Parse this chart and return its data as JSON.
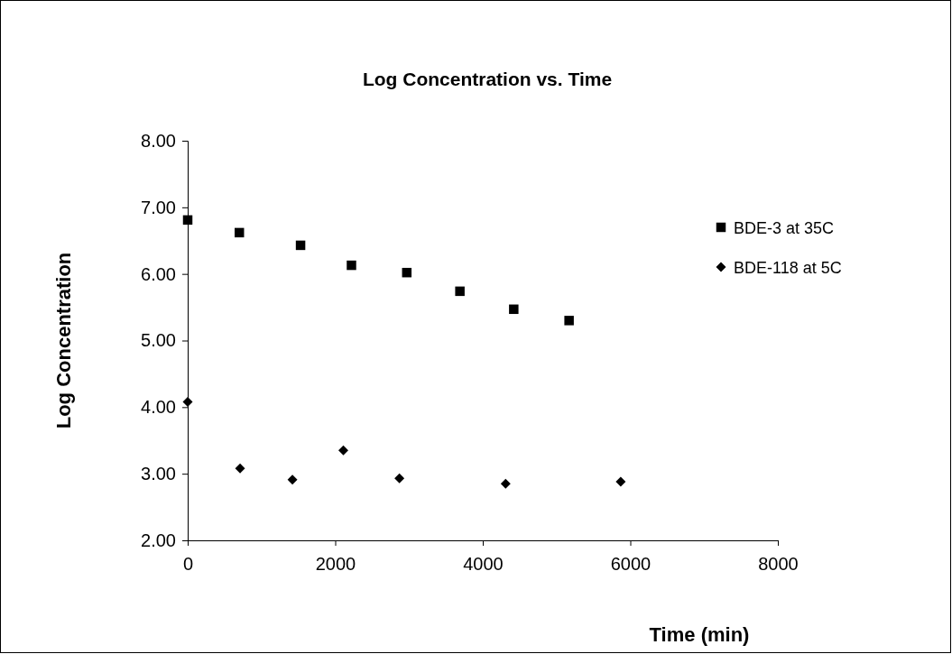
{
  "chart_data": {
    "type": "scatter",
    "title": "Log Concentration vs. Time",
    "xlabel": "Time (min)",
    "ylabel": "Log Concentration",
    "xlim": [
      0,
      8000
    ],
    "xticks": [
      0,
      2000,
      4000,
      6000,
      8000
    ],
    "ylim": [
      2,
      8
    ],
    "yticks": [
      {
        "value": 2,
        "label": "2.00"
      },
      {
        "value": 3,
        "label": "3.00"
      },
      {
        "value": 4,
        "label": "4.00"
      },
      {
        "value": 5,
        "label": "5.00"
      },
      {
        "value": 6,
        "label": "6.00"
      },
      {
        "value": 7,
        "label": "7.00"
      },
      {
        "value": 8,
        "label": "8.00"
      }
    ],
    "grid": false,
    "legend": "right",
    "series": [
      {
        "name": "BDE-3 at 35C",
        "color": "#000000",
        "marker": "square",
        "x": [
          0,
          700,
          1530,
          2220,
          2970,
          3690,
          4420,
          5170
        ],
        "values": [
          6.81,
          6.62,
          6.43,
          6.13,
          6.02,
          5.74,
          5.47,
          5.3
        ]
      },
      {
        "name": "BDE-118 at 5C",
        "color": "#000000",
        "marker": "diamond",
        "x": [
          0,
          710,
          1420,
          2110,
          2870,
          4310,
          5870
        ],
        "values": [
          4.08,
          3.08,
          2.91,
          3.35,
          2.93,
          2.85,
          2.88
        ]
      }
    ]
  }
}
